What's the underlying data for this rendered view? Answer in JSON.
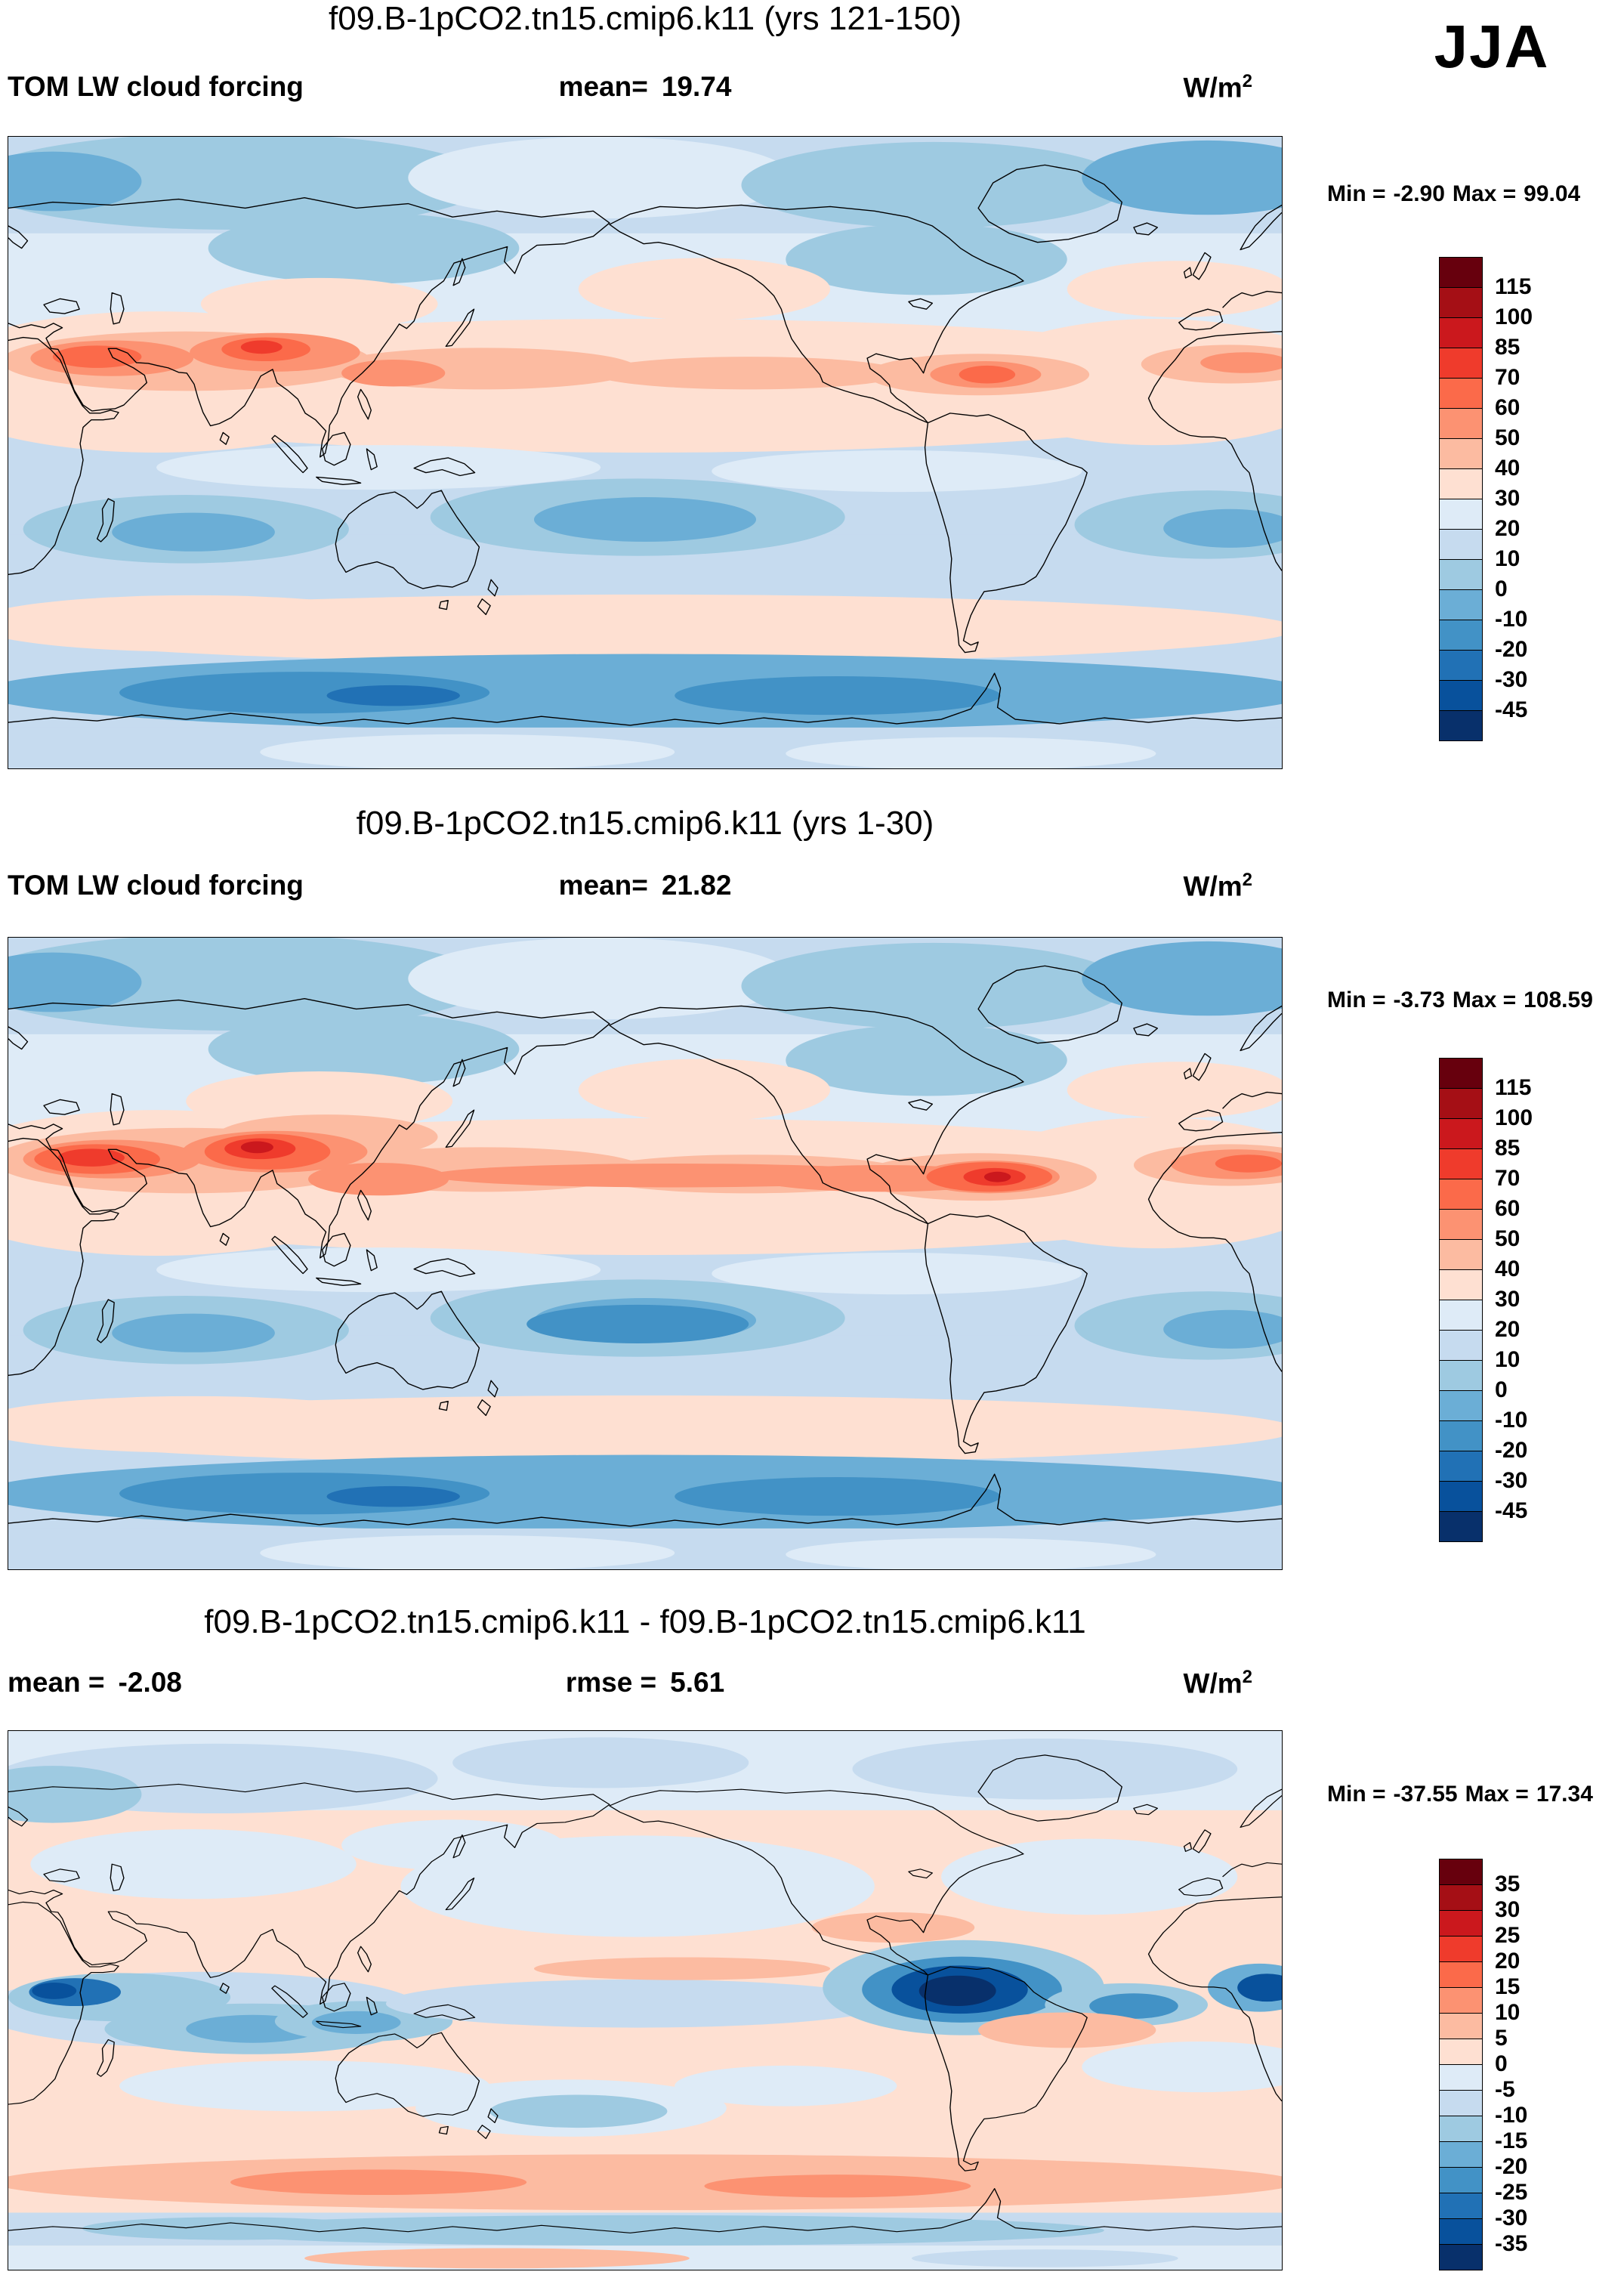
{
  "header": {
    "season_label": "JJA"
  },
  "chart_data": {
    "type": "heatmap",
    "subtype": "global filled-contour latitude-longitude maps, cylindrical projection centered on the Pacific, with vertical color bars",
    "variable": "TOM LW cloud forcing",
    "units": {
      "base": "W/m",
      "exp": "2"
    },
    "palette16_top_to_bottom": [
      "#67000d",
      "#a50f15",
      "#cb181d",
      "#ef3b2c",
      "#fb6a4a",
      "#fc9272",
      "#fcbba1",
      "#fee0d2",
      "#deebf7",
      "#c6dbef",
      "#9ecae1",
      "#6baed6",
      "#4292c6",
      "#2171b5",
      "#08519c",
      "#08306b"
    ],
    "panels": [
      {
        "title": "f09.B-1pCO2.tn15.cmip6.k11 (yrs 121-150)",
        "left_label": "TOM LW cloud forcing",
        "mean_label": "mean=",
        "mean_value": "19.74",
        "min_label": "Min =",
        "min_value": "-2.90",
        "max_label": "Max =",
        "max_value": "99.04",
        "contour_levels": [
          115,
          100,
          85,
          70,
          60,
          50,
          40,
          30,
          20,
          10,
          0,
          -10,
          -20,
          -30,
          -45
        ],
        "colorbar_labels": [
          "115",
          "100",
          "85",
          "70",
          "60",
          "50",
          "40",
          "30",
          "20",
          "10",
          "0",
          "-10",
          "-20",
          "-30",
          "-45"
        ]
      },
      {
        "title": "f09.B-1pCO2.tn15.cmip6.k11 (yrs 1-30)",
        "left_label": "TOM LW cloud forcing",
        "mean_label": "mean=",
        "mean_value": "21.82",
        "min_label": "Min =",
        "min_value": "-3.73",
        "max_label": "Max =",
        "max_value": "108.59",
        "contour_levels": [
          115,
          100,
          85,
          70,
          60,
          50,
          40,
          30,
          20,
          10,
          0,
          -10,
          -20,
          -30,
          -45
        ],
        "colorbar_labels": [
          "115",
          "100",
          "85",
          "70",
          "60",
          "50",
          "40",
          "30",
          "20",
          "10",
          "0",
          "-10",
          "-20",
          "-30",
          "-45"
        ]
      },
      {
        "title": "f09.B-1pCO2.tn15.cmip6.k11 - f09.B-1pCO2.tn15.cmip6.k11",
        "mean_label": "mean =",
        "mean_value": "-2.08",
        "rmse_label": "rmse =",
        "rmse_value": "5.61",
        "min_label": "Min =",
        "min_value": "-37.55",
        "max_label": "Max =",
        "max_value": "17.34",
        "contour_levels": [
          35,
          30,
          25,
          20,
          15,
          10,
          5,
          0,
          -5,
          -10,
          -15,
          -20,
          -25,
          -30,
          -35
        ],
        "colorbar_labels": [
          "35",
          "30",
          "25",
          "20",
          "15",
          "10",
          "5",
          "0",
          "-5",
          "-10",
          "-15",
          "-20",
          "-25",
          "-30",
          "-35"
        ]
      }
    ]
  }
}
